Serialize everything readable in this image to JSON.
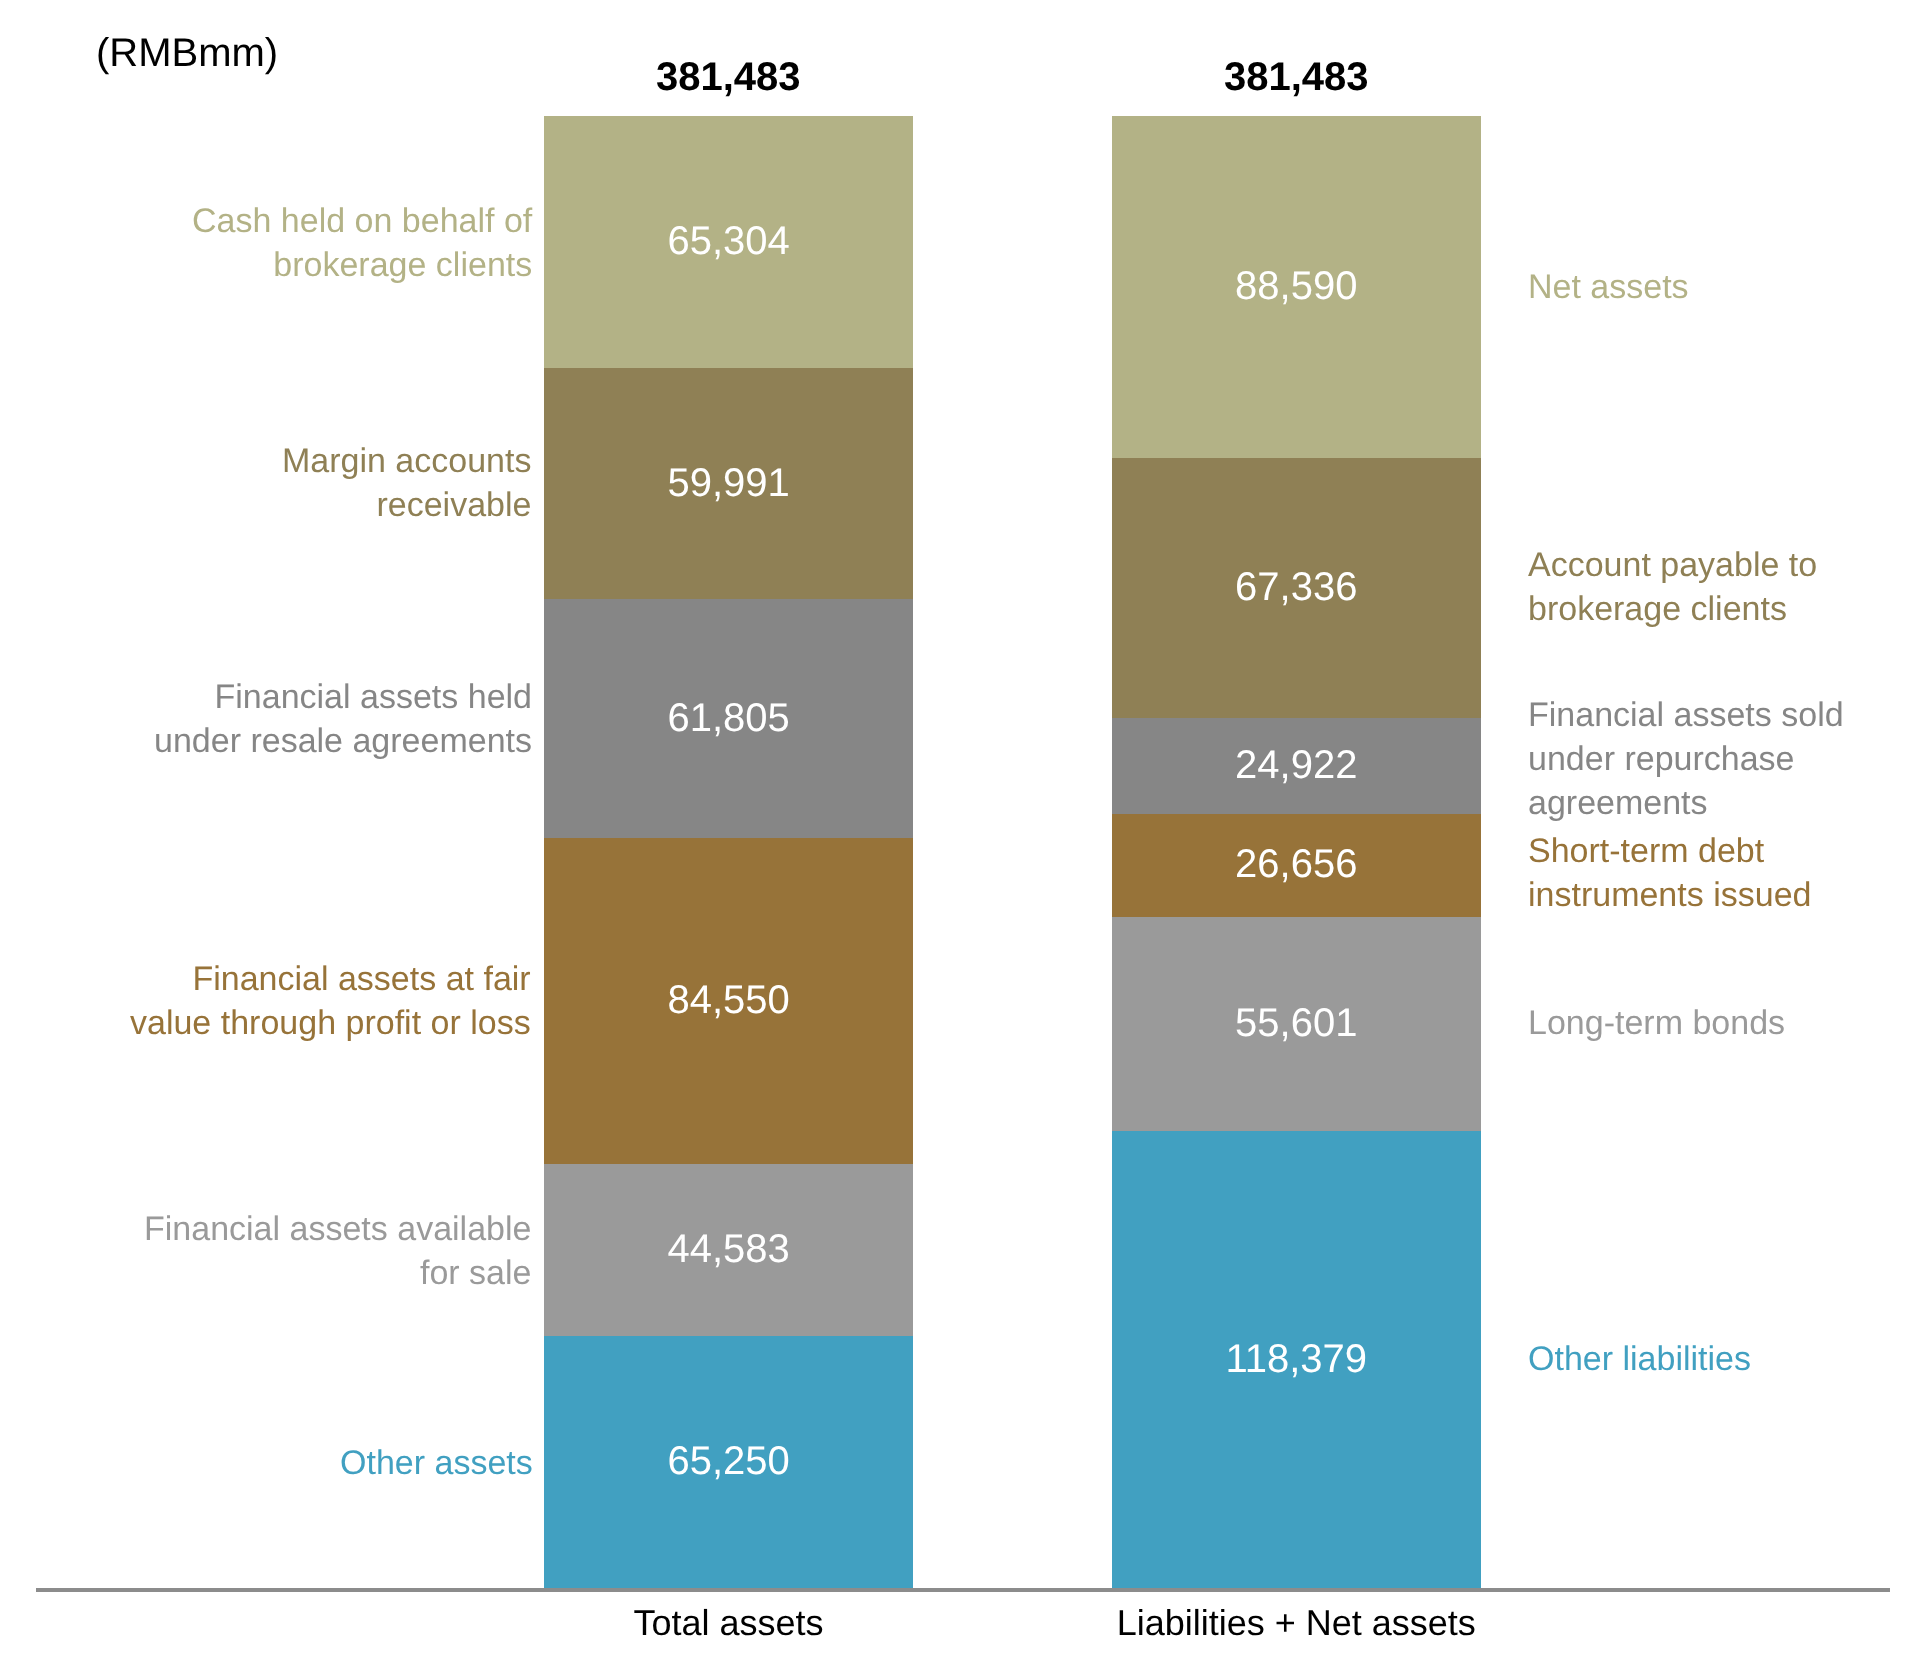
{
  "chart_data": {
    "type": "bar",
    "stacked": true,
    "legend": false,
    "categories": [
      "Total assets",
      "Liabilities + Net assets"
    ],
    "totals": [
      "381,483",
      "381,483"
    ],
    "annotations": [
      "(RMBmm)"
    ],
    "series": [
      {
        "name": "Other assets",
        "color": "#41a0c1",
        "values": [
          65250,
          null
        ],
        "value_labels": [
          "65,250",
          null
        ]
      },
      {
        "name": "Financial assets available\nfor sale",
        "color": "#9a9a9a",
        "values": [
          44583,
          null
        ],
        "value_labels": [
          "44,583",
          null
        ]
      },
      {
        "name": "Financial assets at fair\nvalue through profit or loss",
        "color": "#977339",
        "values": [
          84550,
          null
        ],
        "value_labels": [
          "84,550",
          null
        ]
      },
      {
        "name": "Financial assets held\nunder resale agreements",
        "color": "#868686",
        "values": [
          61805,
          null
        ],
        "value_labels": [
          "61,805",
          null
        ]
      },
      {
        "name": "Margin accounts\nreceivable",
        "color": "#8f8055",
        "values": [
          59991,
          null
        ],
        "value_labels": [
          "59,991",
          null
        ]
      },
      {
        "name": "Cash held on behalf of\nbrokerage clients",
        "color": "#b3b286",
        "values": [
          65304,
          null
        ],
        "value_labels": [
          "65,304",
          null
        ]
      },
      {
        "name": "Other liabilities",
        "color": "#41a0c1",
        "values": [
          null,
          118379
        ],
        "value_labels": [
          null,
          "118,379"
        ]
      },
      {
        "name": "Long-term bonds",
        "color": "#9a9a9a",
        "values": [
          null,
          55601
        ],
        "value_labels": [
          null,
          "55,601"
        ]
      },
      {
        "name": "Short-term debt\ninstruments issued",
        "color": "#977339",
        "values": [
          null,
          26656
        ],
        "value_labels": [
          null,
          "26,656"
        ]
      },
      {
        "name": "Financial assets sold\nunder repurchase\nagreements",
        "color": "#868686",
        "values": [
          null,
          24922
        ],
        "value_labels": [
          null,
          "24,922"
        ]
      },
      {
        "name": "Account payable to\nbrokerage clients",
        "color": "#8f8055",
        "values": [
          null,
          67336
        ],
        "value_labels": [
          null,
          "67,336"
        ]
      },
      {
        "name": "Net assets",
        "color": "#b3b286",
        "values": [
          null,
          88590
        ],
        "value_labels": [
          null,
          "88,590"
        ]
      }
    ]
  }
}
